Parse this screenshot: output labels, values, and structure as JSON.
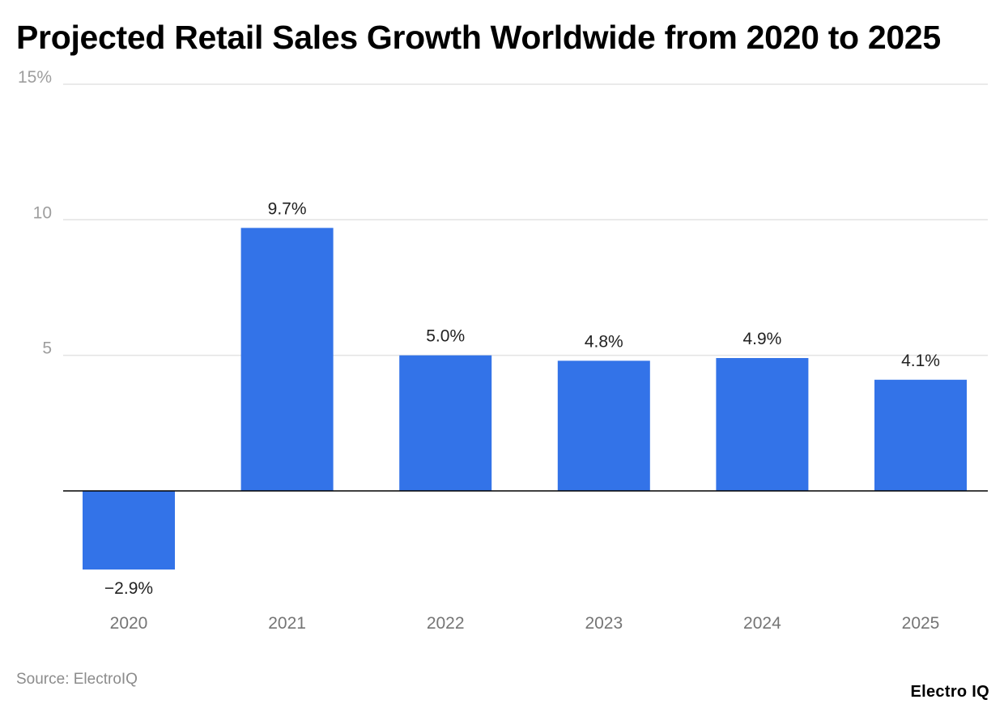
{
  "chart_data": {
    "type": "bar",
    "title": "Projected Retail Sales Growth Worldwide from 2020 to 2025",
    "xlabel": "",
    "ylabel": "",
    "categories": [
      "2020",
      "2021",
      "2022",
      "2023",
      "2024",
      "2025"
    ],
    "values": [
      -2.9,
      9.7,
      5.0,
      4.8,
      4.9,
      4.1
    ],
    "value_labels": [
      "−2.9%",
      "9.7%",
      "5.0%",
      "4.8%",
      "4.9%",
      "4.1%"
    ],
    "ylim": [
      -5,
      15
    ],
    "y_ticks": [
      {
        "value": 5,
        "label": "5"
      },
      {
        "value": 10,
        "label": "10"
      },
      {
        "value": 15,
        "label": "15%"
      }
    ],
    "grid": true,
    "legend": "none",
    "bar_color": "#3373e8",
    "grid_color": "#e3e3e3",
    "zero_line_color": "#000000"
  },
  "footer": {
    "source": "Source: ElectroIQ",
    "brand": "Electro IQ"
  }
}
